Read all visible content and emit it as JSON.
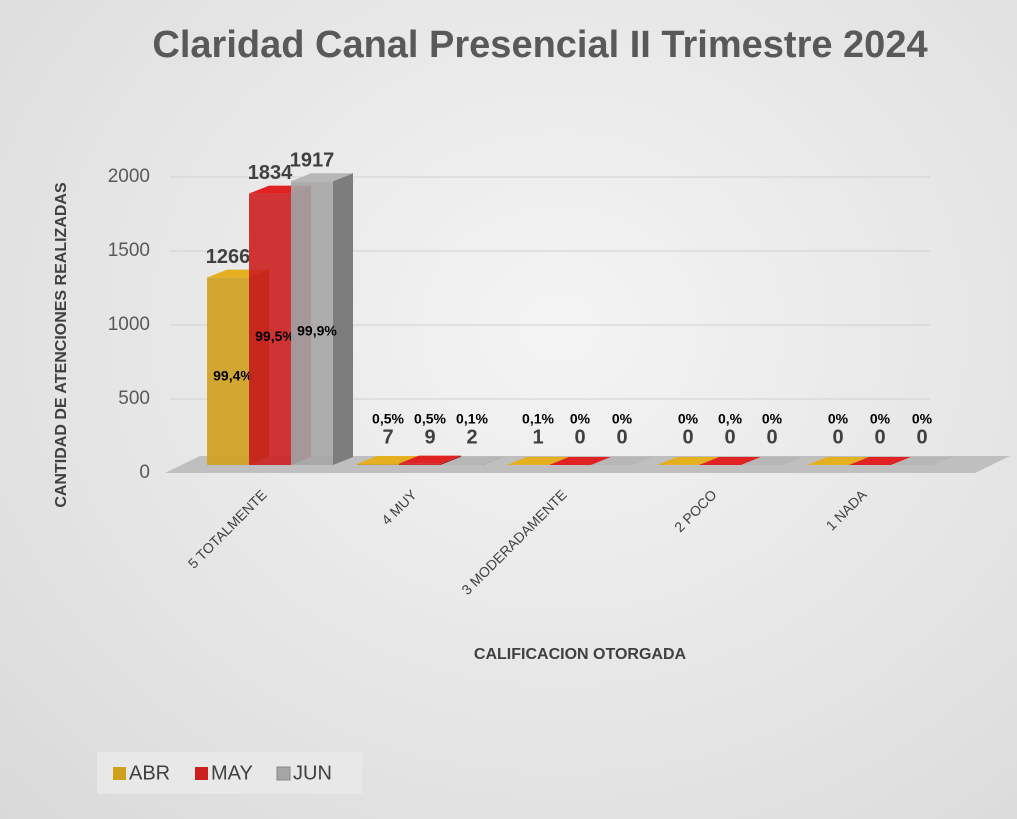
{
  "chart_data": {
    "type": "bar3d",
    "title": "Claridad Canal Presencial II Trimestre 2024",
    "y_axis_label": "CANTIDAD DE ATENCIONES REALIZADAS",
    "x_axis_label": "CALIFICACION OTORGADA",
    "categories": [
      "5 TOTALMENTE",
      "4 MUY",
      "3 MODERADAMENTE",
      "2 POCO",
      "1 NADA"
    ],
    "series": [
      {
        "name": "ABR",
        "color": "#cfa01d",
        "values": [
          1266,
          7,
          1,
          0,
          0
        ],
        "percent_labels": [
          "99,4%",
          "0,5%",
          "0,1%",
          "0%",
          "0%"
        ]
      },
      {
        "name": "MAY",
        "color": "#cc1f1f",
        "values": [
          1834,
          9,
          0,
          0,
          0
        ],
        "percent_labels": [
          "99,5%",
          "0,5%",
          "0%",
          "0,%",
          "0%"
        ]
      },
      {
        "name": "JUN",
        "color": "#a6a6a6",
        "values": [
          1917,
          2,
          0,
          0,
          0
        ],
        "percent_labels": [
          "99,9%",
          "0,1%",
          "0%",
          "0%",
          "0%"
        ]
      }
    ],
    "ylim": [
      0,
      2000
    ],
    "yticks": [
      0,
      500,
      1000,
      1500,
      2000
    ],
    "grid": true,
    "legend": "bottom-left"
  }
}
